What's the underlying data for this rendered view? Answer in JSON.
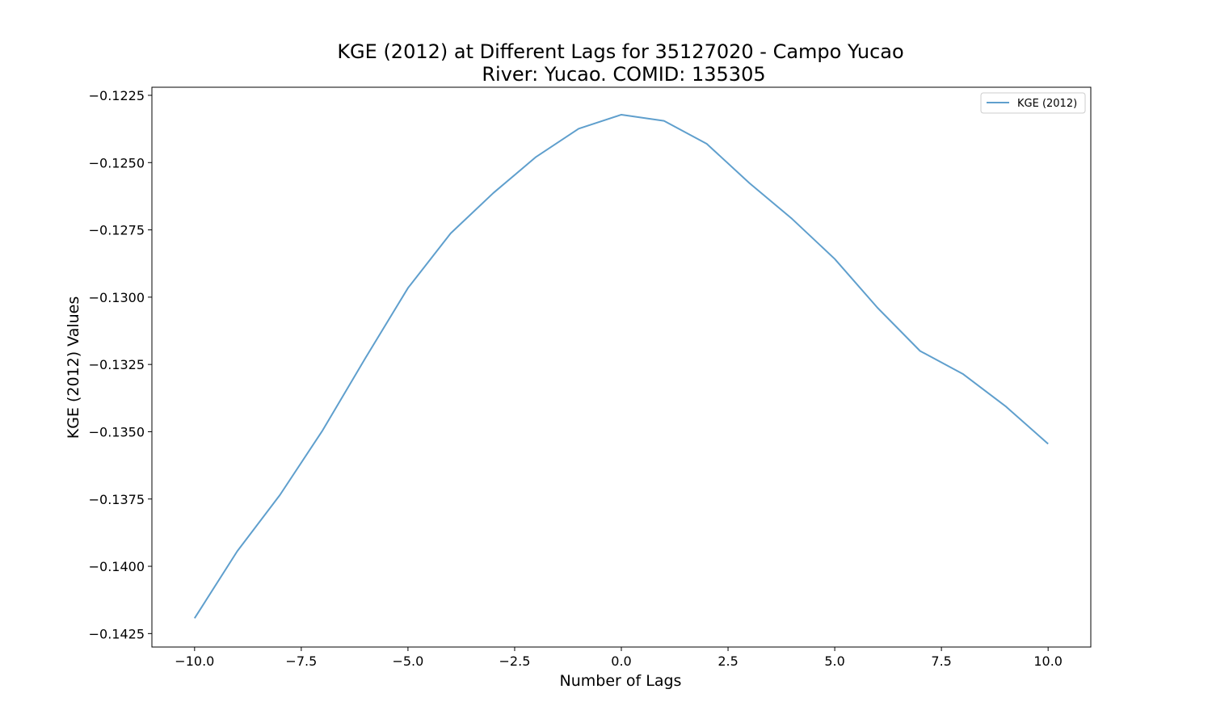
{
  "chart_data": {
    "type": "line",
    "title": "KGE (2012) at Different Lags for 35127020 - Campo Yucao",
    "subtitle": "River: Yucao. COMID: 135305",
    "xlabel": "Number of Lags",
    "ylabel": "KGE (2012) Values",
    "xlim": [
      -11.0,
      11.0
    ],
    "ylim": [
      -0.143,
      -0.1222
    ],
    "x_ticks": [
      -10.0,
      -7.5,
      -5.0,
      -2.5,
      0.0,
      2.5,
      5.0,
      7.5,
      10.0
    ],
    "x_tick_labels": [
      "−10.0",
      "−7.5",
      "−5.0",
      "−2.5",
      "0.0",
      "2.5",
      "5.0",
      "7.5",
      "10.0"
    ],
    "y_ticks": [
      -0.1225,
      -0.125,
      -0.1275,
      -0.13,
      -0.1325,
      -0.135,
      -0.1375,
      -0.14,
      -0.1425
    ],
    "y_tick_labels": [
      "−0.1225",
      "−0.1250",
      "−0.1275",
      "−0.1300",
      "−0.1325",
      "−0.1350",
      "−0.1375",
      "−0.1400",
      "−0.1425"
    ],
    "grid": false,
    "legend_position": "top-right",
    "series": [
      {
        "name": "KGE (2012)",
        "color": "#5f9fcd",
        "x": [
          -10,
          -9,
          -8,
          -7,
          -6,
          -5,
          -4,
          -3,
          -2,
          -1,
          0,
          1,
          2,
          3,
          4,
          5,
          6,
          7,
          8,
          9,
          10
        ],
        "values": [
          -0.14193,
          -0.13944,
          -0.13735,
          -0.13495,
          -0.13227,
          -0.12966,
          -0.12763,
          -0.12613,
          -0.12479,
          -0.12374,
          -0.12322,
          -0.12345,
          -0.1243,
          -0.12576,
          -0.12709,
          -0.12858,
          -0.13039,
          -0.132,
          -0.13285,
          -0.13405,
          -0.13545
        ]
      }
    ]
  }
}
